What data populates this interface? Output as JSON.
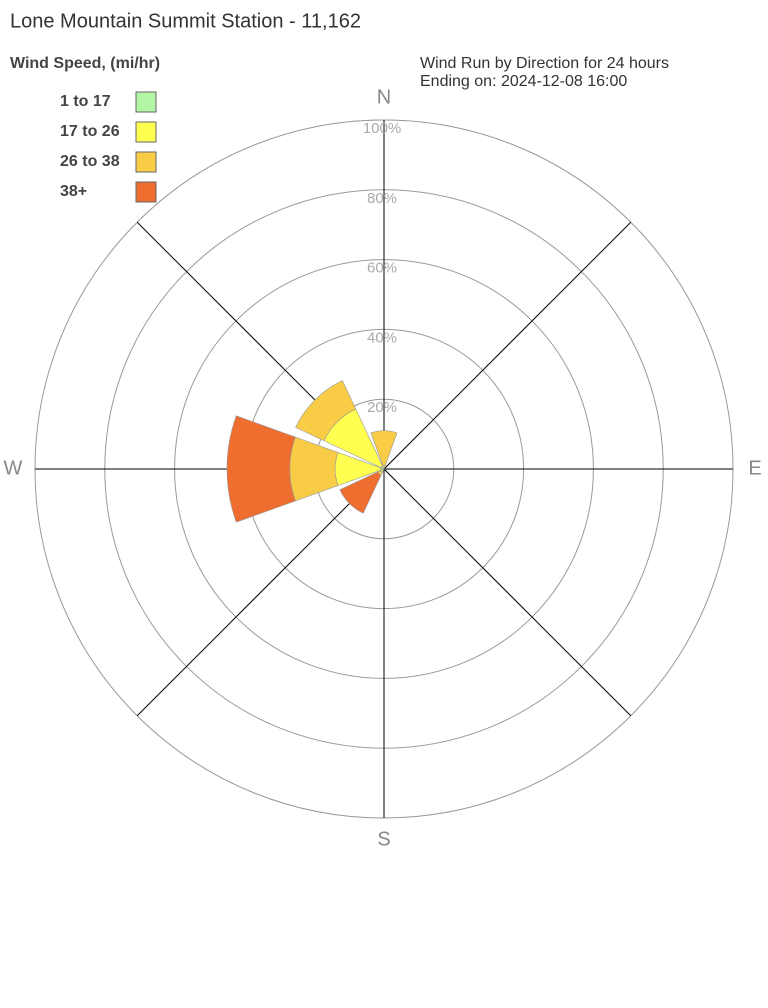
{
  "chart_data": {
    "type": "windrose",
    "title": "Lone Mountain Summit Station - 11,162",
    "legend_title": "Wind Speed, (mi/hr)",
    "subtitle": [
      "Wind Run by Direction for 24 hours",
      "Ending on: 2024-12-08 16:00"
    ],
    "categories": [
      "N",
      null,
      "E",
      null,
      "S",
      null,
      "W",
      null
    ],
    "series": [
      {
        "name": "1 to 17",
        "color": "#b3f7a5",
        "values": [
          0,
          0,
          0,
          0,
          0,
          0,
          1,
          1
        ]
      },
      {
        "name": "17 to 26",
        "color": "#ffff4f",
        "values": [
          1,
          0,
          0,
          0,
          0,
          1,
          13,
          18
        ]
      },
      {
        "name": "26 to 38",
        "color": "#f8cc45",
        "values": [
          10,
          0,
          0,
          0,
          0,
          1,
          13,
          9
        ]
      },
      {
        "name": "38+",
        "color": "#ef6e2f",
        "values": [
          0,
          0,
          0,
          0,
          0,
          12,
          18,
          0
        ]
      }
    ],
    "rlim": [
      0,
      100
    ],
    "rticks": [
      {
        "value": 20,
        "label": "20%"
      },
      {
        "value": 40,
        "label": "40%"
      },
      {
        "value": 60,
        "label": "60%"
      },
      {
        "value": 80,
        "label": "80%"
      },
      {
        "value": 100,
        "label": "100%"
      }
    ],
    "grid": true
  }
}
